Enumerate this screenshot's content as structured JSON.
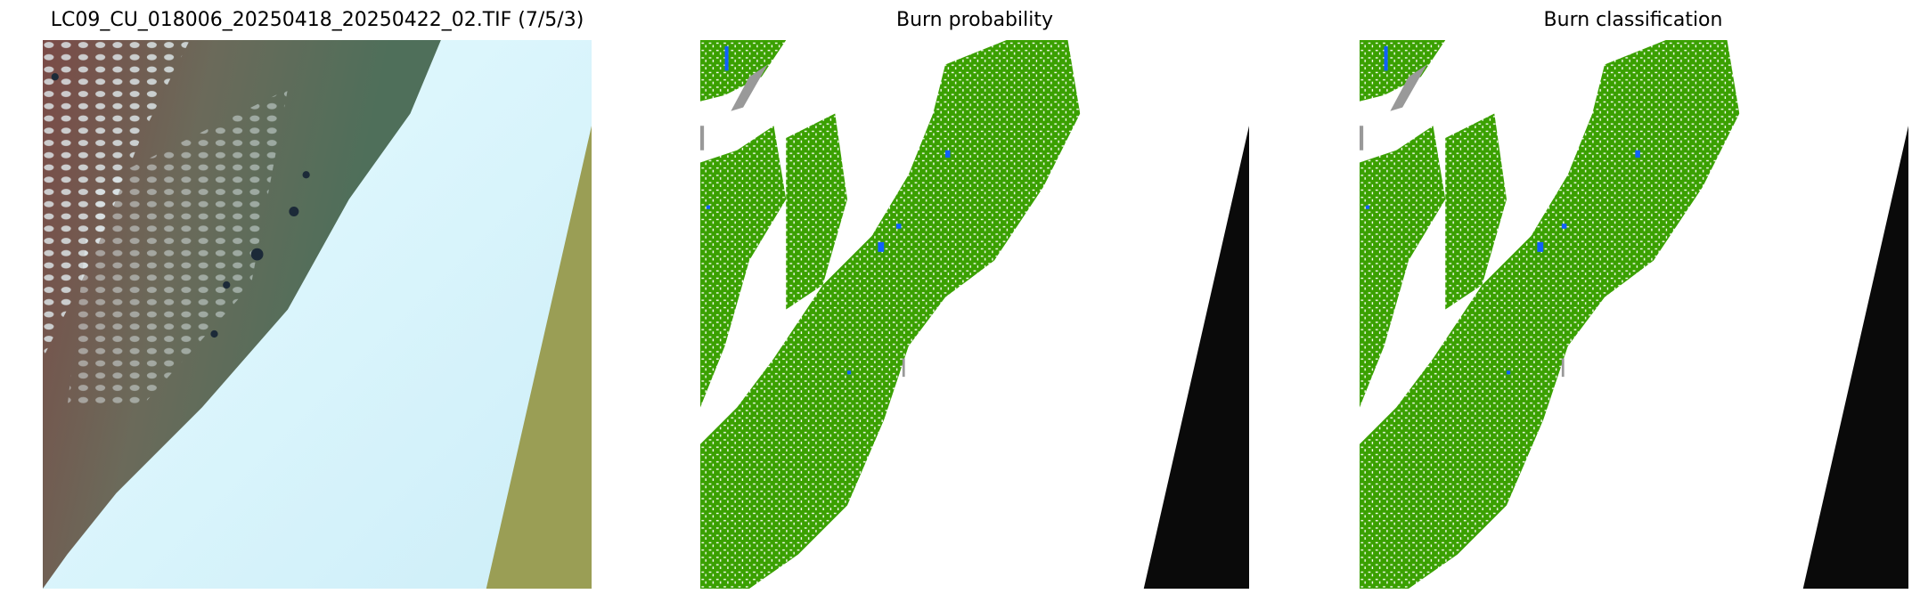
{
  "panels": [
    {
      "title": "LC09_CU_018006_20250418_20250422_02.TIF (7/5/3)",
      "kind": "false-color-composite"
    },
    {
      "title": "Burn probability",
      "kind": "probability-map"
    },
    {
      "title": "Burn classification",
      "kind": "classification-map"
    }
  ],
  "colors": {
    "burned": "#3aa000",
    "water": "#1060ff",
    "unclassified": "#999999",
    "nodata_composite": "#9a9e55",
    "nodata_map": "#0a0a0a",
    "snow_cloud": "#dff6fb"
  }
}
